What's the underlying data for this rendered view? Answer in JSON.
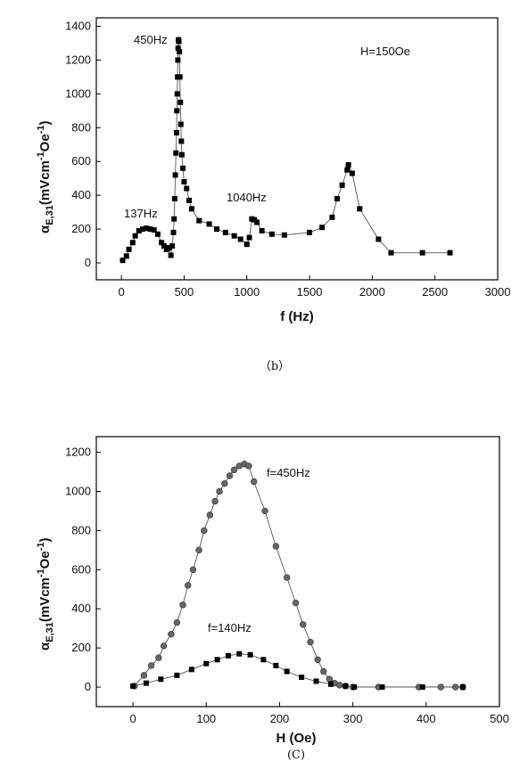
{
  "chart_data": [
    {
      "type": "line",
      "xlabel": "f (Hz)",
      "ylabel_main": "α",
      "ylabel_sub": "E,31",
      "ylabel_rest": "(mVcm",
      "ylabel_sup1": "-1",
      "ylabel_mid": "Oe",
      "ylabel_sup2": "-1",
      "ylabel_end": ")",
      "xlim": [
        -200,
        3000
      ],
      "ylim": [
        -100,
        1450
      ],
      "xticks": [
        0,
        500,
        1000,
        1500,
        2000,
        2500,
        3000
      ],
      "yticks": [
        0,
        200,
        400,
        600,
        800,
        1000,
        1200,
        1400
      ],
      "annotations": [
        "450Hz",
        "137Hz",
        "1040Hz",
        "H=150Oe"
      ],
      "caption": "（b）",
      "series": [
        {
          "marker": "square",
          "color": "#000000",
          "points": [
            [
              10,
              15
            ],
            [
              40,
              40
            ],
            [
              60,
              80
            ],
            [
              90,
              120
            ],
            [
              110,
              160
            ],
            [
              140,
              190
            ],
            [
              170,
              200
            ],
            [
              200,
              205
            ],
            [
              230,
              200
            ],
            [
              260,
              195
            ],
            [
              290,
              170
            ],
            [
              320,
              120
            ],
            [
              340,
              100
            ],
            [
              360,
              80
            ],
            [
              380,
              90
            ],
            [
              395,
              45
            ],
            [
              405,
              100
            ],
            [
              415,
              180
            ],
            [
              420,
              260
            ],
            [
              425,
              380
            ],
            [
              430,
              520
            ],
            [
              435,
              650
            ],
            [
              440,
              770
            ],
            [
              442,
              900
            ],
            [
              445,
              1000
            ],
            [
              448,
              1100
            ],
            [
              450,
              1200
            ],
            [
              452,
              1270
            ],
            [
              455,
              1320
            ],
            [
              458,
              1310
            ],
            [
              462,
              1250
            ],
            [
              466,
              1100
            ],
            [
              470,
              950
            ],
            [
              474,
              820
            ],
            [
              478,
              720
            ],
            [
              482,
              640
            ],
            [
              490,
              560
            ],
            [
              500,
              480
            ],
            [
              520,
              440
            ],
            [
              540,
              370
            ],
            [
              560,
              320
            ],
            [
              620,
              250
            ],
            [
              700,
              230
            ],
            [
              760,
              200
            ],
            [
              830,
              180
            ],
            [
              900,
              160
            ],
            [
              950,
              140
            ],
            [
              1000,
              110
            ],
            [
              1020,
              150
            ],
            [
              1040,
              260
            ],
            [
              1060,
              255
            ],
            [
              1080,
              240
            ],
            [
              1120,
              190
            ],
            [
              1200,
              170
            ],
            [
              1300,
              165
            ],
            [
              1500,
              180
            ],
            [
              1600,
              210
            ],
            [
              1680,
              270
            ],
            [
              1720,
              380
            ],
            [
              1760,
              460
            ],
            [
              1800,
              550
            ],
            [
              1810,
              580
            ],
            [
              1840,
              530
            ],
            [
              1900,
              320
            ],
            [
              2050,
              140
            ],
            [
              2150,
              60
            ],
            [
              2400,
              60
            ],
            [
              2620,
              60
            ]
          ]
        }
      ]
    },
    {
      "type": "line",
      "xlabel": "H (Oe)",
      "ylabel_main": "α",
      "ylabel_sub": "E,31",
      "ylabel_rest": "(mVcm",
      "ylabel_sup1": "-1",
      "ylabel_mid": "Oe",
      "ylabel_sup2": "-1",
      "ylabel_end": ")",
      "xlim": [
        -50,
        500
      ],
      "ylim": [
        -100,
        1280
      ],
      "xticks": [
        0,
        100,
        200,
        300,
        400,
        500
      ],
      "yticks": [
        0,
        200,
        400,
        600,
        800,
        1000,
        1200
      ],
      "annotations": [
        "f=450Hz",
        "f=140Hz"
      ],
      "caption": "(C)",
      "series": [
        {
          "name": "f=450Hz",
          "marker": "circle",
          "color": "#666666",
          "points": [
            [
              2,
              5
            ],
            [
              15,
              60
            ],
            [
              25,
              110
            ],
            [
              35,
              150
            ],
            [
              42,
              210
            ],
            [
              52,
              270
            ],
            [
              60,
              330
            ],
            [
              68,
              420
            ],
            [
              75,
              520
            ],
            [
              82,
              600
            ],
            [
              90,
              700
            ],
            [
              97,
              800
            ],
            [
              105,
              880
            ],
            [
              112,
              950
            ],
            [
              118,
              1000
            ],
            [
              125,
              1040
            ],
            [
              132,
              1080
            ],
            [
              138,
              1110
            ],
            [
              145,
              1130
            ],
            [
              152,
              1140
            ],
            [
              158,
              1130
            ],
            [
              165,
              1050
            ],
            [
              180,
              900
            ],
            [
              195,
              720
            ],
            [
              210,
              560
            ],
            [
              222,
              430
            ],
            [
              232,
              320
            ],
            [
              242,
              230
            ],
            [
              252,
              140
            ],
            [
              260,
              80
            ],
            [
              268,
              40
            ],
            [
              275,
              20
            ],
            [
              282,
              10
            ],
            [
              290,
              5
            ],
            [
              300,
              0
            ],
            [
              335,
              0
            ],
            [
              390,
              0
            ],
            [
              420,
              0
            ],
            [
              440,
              0
            ],
            [
              450,
              0
            ]
          ]
        },
        {
          "name": "f=140Hz",
          "marker": "square",
          "color": "#000000",
          "points": [
            [
              0,
              5
            ],
            [
              18,
              20
            ],
            [
              38,
              40
            ],
            [
              60,
              60
            ],
            [
              80,
              90
            ],
            [
              100,
              120
            ],
            [
              115,
              140
            ],
            [
              130,
              160
            ],
            [
              145,
              170
            ],
            [
              160,
              165
            ],
            [
              178,
              140
            ],
            [
              195,
              110
            ],
            [
              210,
              80
            ],
            [
              230,
              50
            ],
            [
              250,
              30
            ],
            [
              270,
              15
            ],
            [
              290,
              5
            ],
            [
              302,
              0
            ],
            [
              340,
              0
            ],
            [
              395,
              0
            ],
            [
              450,
              0
            ]
          ]
        }
      ]
    }
  ]
}
